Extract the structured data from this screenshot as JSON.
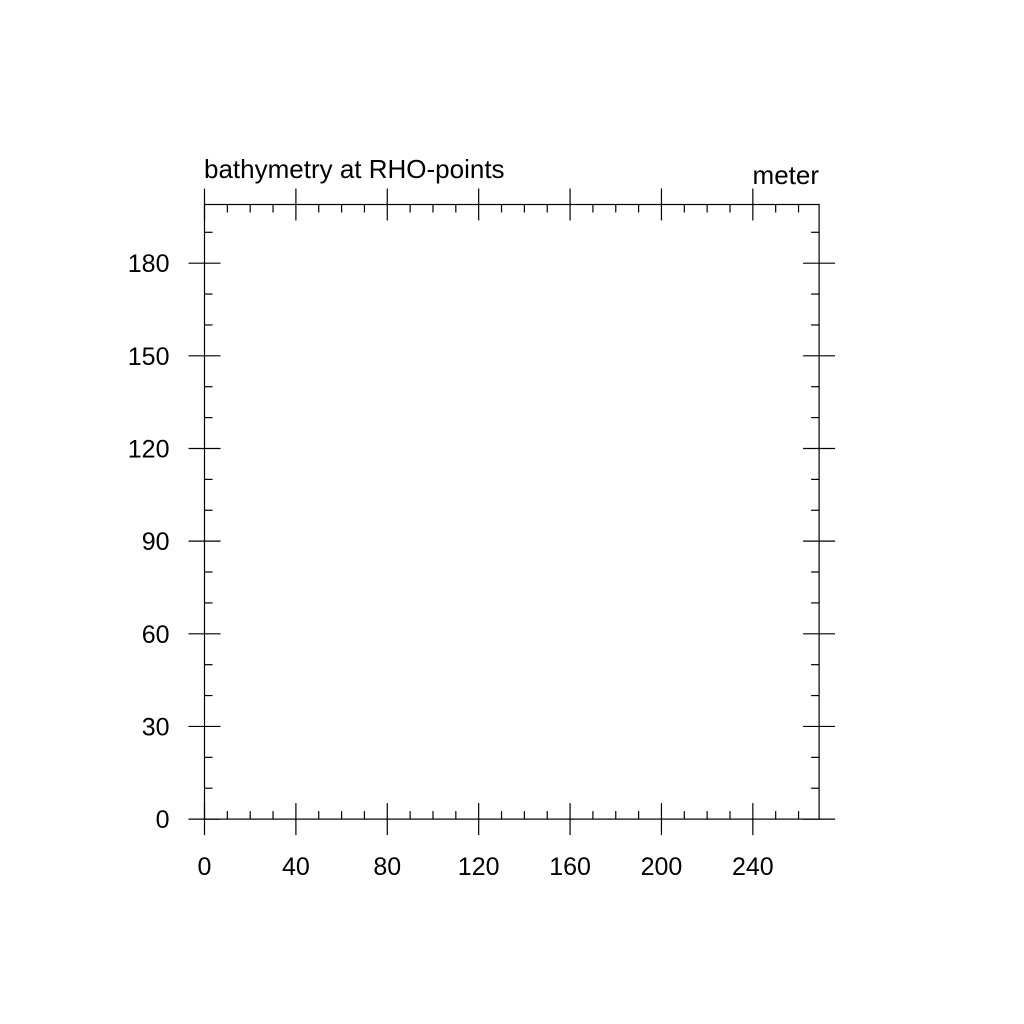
{
  "chart_data": {
    "type": "heatmap",
    "title": "bathymetry at RHO-points",
    "units": "meter",
    "xlabel": "",
    "ylabel": "",
    "xlim": [
      0,
      269
    ],
    "ylim": [
      0,
      199
    ],
    "x_ticks": [
      0,
      40,
      80,
      120,
      160,
      200,
      240
    ],
    "y_ticks": [
      0,
      30,
      60,
      90,
      120,
      150,
      180
    ],
    "x_minor_step": 10,
    "y_minor_step": 10,
    "values": [],
    "grid": false,
    "legend": "none",
    "colors": {
      "frame": "#000000",
      "background": "#ffffff"
    }
  }
}
